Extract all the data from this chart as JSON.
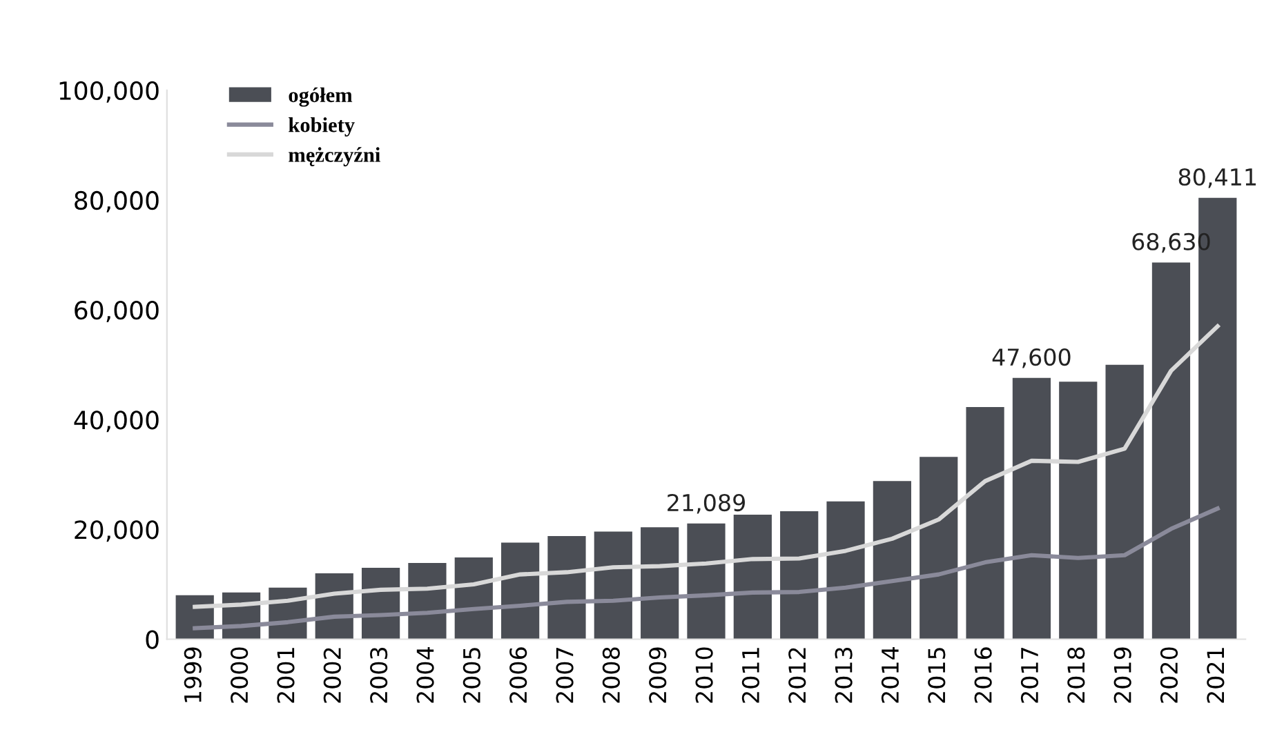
{
  "chart_data": {
    "type": "bar",
    "categories": [
      "1999",
      "2000",
      "2001",
      "2002",
      "2003",
      "2004",
      "2005",
      "2006",
      "2007",
      "2008",
      "2009",
      "2010",
      "2011",
      "2012",
      "2013",
      "2014",
      "2015",
      "2016",
      "2017",
      "2018",
      "2019",
      "2020",
      "2021"
    ],
    "series": [
      {
        "name": "ogółem",
        "color": "#4b4e55",
        "values": [
          8000,
          8500,
          9400,
          12000,
          13000,
          13900,
          14900,
          17600,
          18800,
          19600,
          20400,
          21089,
          22700,
          23300,
          25100,
          28800,
          33200,
          42300,
          47600,
          46900,
          50000,
          68630,
          80411
        ],
        "value_labels": [
          null,
          null,
          null,
          null,
          null,
          null,
          null,
          null,
          null,
          null,
          null,
          "21,089",
          null,
          null,
          null,
          null,
          null,
          null,
          "47,600",
          null,
          null,
          "68,630",
          "80,411"
        ]
      },
      {
        "name": "kobiety",
        "type": "line",
        "color": "#8a8a9a",
        "values": [
          2000,
          2400,
          3100,
          4100,
          4400,
          4800,
          5500,
          6100,
          6800,
          7000,
          7600,
          8000,
          8500,
          8600,
          9400,
          10600,
          11800,
          14000,
          15300,
          14800,
          15300,
          20100,
          23800
        ]
      },
      {
        "name": "mężczyźni",
        "type": "line",
        "color": "#d8d8d8",
        "values": [
          5900,
          6300,
          7000,
          8300,
          9000,
          9200,
          10000,
          11800,
          12200,
          13100,
          13300,
          13800,
          14600,
          14700,
          16100,
          18300,
          21800,
          28800,
          32500,
          32300,
          34700,
          48900,
          57000
        ]
      }
    ],
    "ylim": [
      0,
      100000
    ],
    "yticks": [
      0,
      {
        "value": 20000,
        "label": "20,000"
      },
      {
        "value": 40000,
        "label": "40,000"
      },
      {
        "value": 60000,
        "label": "60,000"
      },
      {
        "value": 80000,
        "label": "80,000"
      },
      {
        "value": 100000,
        "label": "100,000"
      }
    ],
    "legend": "top left",
    "grid": false
  }
}
